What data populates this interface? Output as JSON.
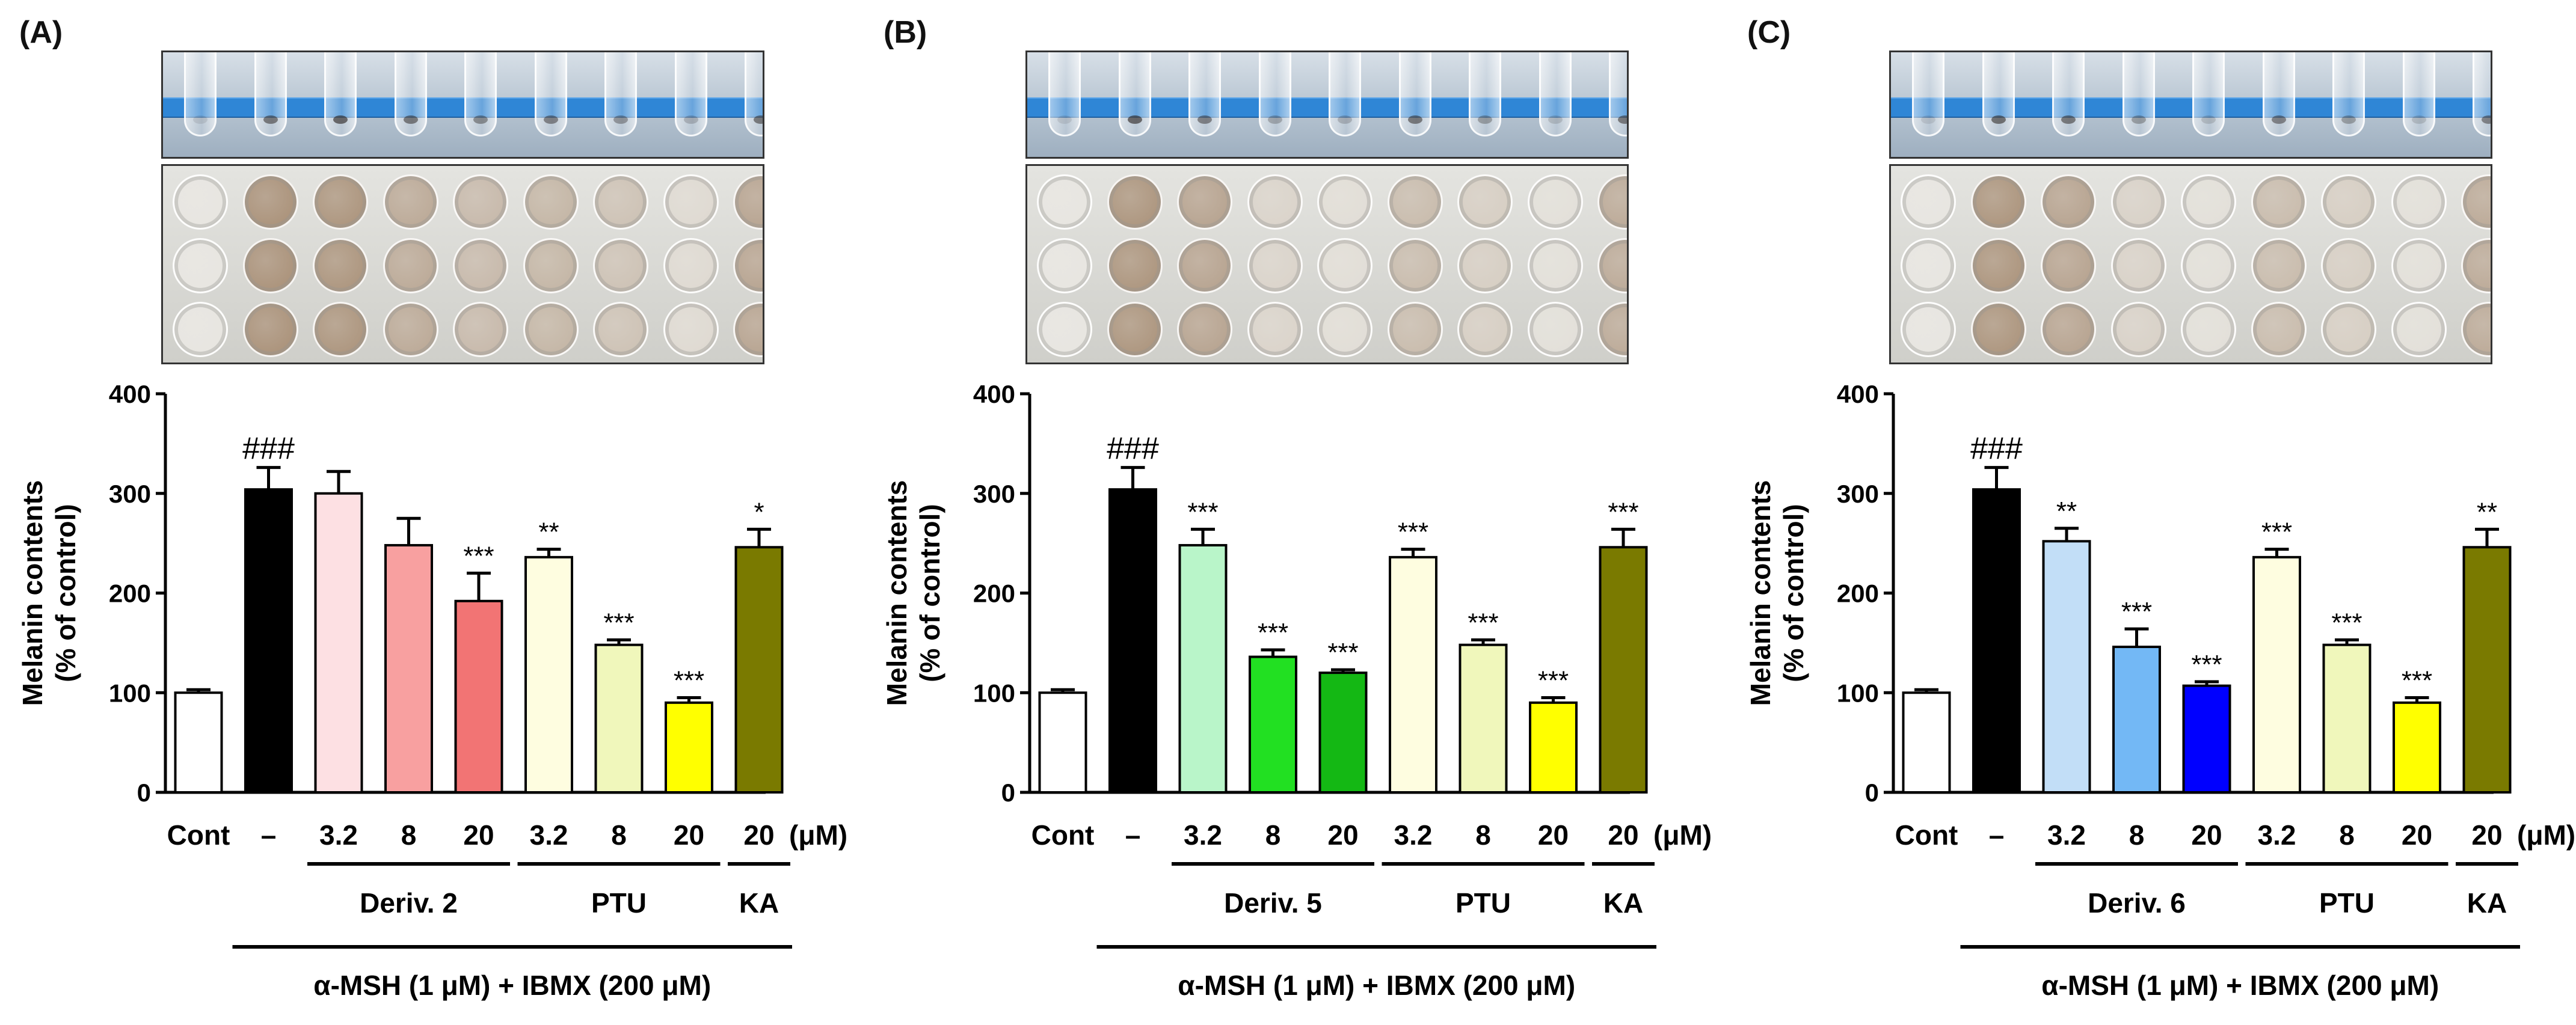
{
  "chart_data": [
    {
      "panel": "(A)",
      "type": "bar",
      "categories": [
        "Cont",
        "–",
        "3.2",
        "8",
        "20",
        "3.2",
        "8",
        "20",
        "20"
      ],
      "unit_label": "(μM)",
      "values": [
        100,
        304,
        300,
        248,
        192,
        236,
        148,
        90,
        246
      ],
      "errors": [
        3,
        22,
        22,
        27,
        28,
        8,
        5,
        5,
        18
      ],
      "colors": [
        "#ffffff",
        "#000000",
        "#fde0e3",
        "#f8a0a0",
        "#f27474",
        "#fefde0",
        "#f0f7bb",
        "#ffff00",
        "#7a7a00"
      ],
      "significance": [
        "",
        "###",
        "",
        "",
        "***",
        "**",
        "***",
        "***",
        "*"
      ],
      "ylabel_line1": "Melanin contents",
      "ylabel_line2": "(% of control)",
      "ylim": [
        0,
        400
      ],
      "yticks": [
        "0",
        "100",
        "200",
        "300",
        "400"
      ],
      "groups": [
        {
          "label": "Deriv. 2",
          "from": 2,
          "to": 4
        },
        {
          "label": "PTU",
          "from": 5,
          "to": 7
        },
        {
          "label": "KA",
          "from": 8,
          "to": 8
        }
      ],
      "treatment_label": "α-MSH (1 μM) + IBMX (200 μM)",
      "treatment_from": 1,
      "treatment_to": 8,
      "tube_pellet_intensity": [
        0.1,
        0.5,
        0.6,
        0.5,
        0.4,
        0.45,
        0.35,
        0.2,
        0.5
      ],
      "well_color_intensity": [
        0.05,
        0.75,
        0.72,
        0.55,
        0.42,
        0.45,
        0.35,
        0.15,
        0.6
      ]
    },
    {
      "panel": "(B)",
      "type": "bar",
      "categories": [
        "Cont",
        "–",
        "3.2",
        "8",
        "20",
        "3.2",
        "8",
        "20",
        "20"
      ],
      "unit_label": "(μM)",
      "values": [
        100,
        304,
        248,
        136,
        120,
        236,
        148,
        90,
        246
      ],
      "errors": [
        3,
        22,
        16,
        7,
        3,
        8,
        5,
        5,
        18
      ],
      "colors": [
        "#ffffff",
        "#000000",
        "#b9f5c9",
        "#22e022",
        "#14b814",
        "#fefde0",
        "#f0f7bb",
        "#ffff00",
        "#7a7a00"
      ],
      "significance": [
        "",
        "###",
        "***",
        "***",
        "***",
        "***",
        "***",
        "***",
        "***"
      ],
      "ylabel_line1": "Melanin contents",
      "ylabel_line2": "(% of control)",
      "ylim": [
        0,
        400
      ],
      "yticks": [
        "0",
        "100",
        "200",
        "300",
        "400"
      ],
      "groups": [
        {
          "label": "Deriv. 5",
          "from": 2,
          "to": 4
        },
        {
          "label": "PTU",
          "from": 5,
          "to": 7
        },
        {
          "label": "KA",
          "from": 8,
          "to": 8
        }
      ],
      "treatment_label": "α-MSH (1 μM) + IBMX (200 μM)",
      "treatment_from": 1,
      "treatment_to": 8,
      "tube_pellet_intensity": [
        0.1,
        0.6,
        0.45,
        0.25,
        0.2,
        0.5,
        0.3,
        0.15,
        0.5
      ],
      "well_color_intensity": [
        0.05,
        0.72,
        0.6,
        0.2,
        0.12,
        0.4,
        0.25,
        0.1,
        0.55
      ]
    },
    {
      "panel": "(C)",
      "type": "bar",
      "categories": [
        "Cont",
        "–",
        "3.2",
        "8",
        "20",
        "3.2",
        "8",
        "20",
        "20"
      ],
      "unit_label": "(μM)",
      "values": [
        100,
        304,
        252,
        146,
        107,
        236,
        148,
        90,
        246
      ],
      "errors": [
        3,
        22,
        13,
        18,
        4,
        8,
        5,
        5,
        18
      ],
      "colors": [
        "#ffffff",
        "#000000",
        "#c2def7",
        "#73b8f5",
        "#0000ff",
        "#fefde0",
        "#f0f7bb",
        "#ffff00",
        "#7a7a00"
      ],
      "significance": [
        "",
        "###",
        "**",
        "***",
        "***",
        "***",
        "***",
        "***",
        "**"
      ],
      "ylabel_line1": "Melanin contents",
      "ylabel_line2": "(% of control)",
      "ylim": [
        0,
        400
      ],
      "yticks": [
        "0",
        "100",
        "200",
        "300",
        "400"
      ],
      "groups": [
        {
          "label": "Deriv. 6",
          "from": 2,
          "to": 4
        },
        {
          "label": "PTU",
          "from": 5,
          "to": 7
        },
        {
          "label": "KA",
          "from": 8,
          "to": 8
        }
      ],
      "treatment_label": "α-MSH (1 μM) + IBMX (200 μM)",
      "treatment_from": 1,
      "treatment_to": 8,
      "tube_pellet_intensity": [
        0.1,
        0.55,
        0.5,
        0.3,
        0.15,
        0.45,
        0.3,
        0.15,
        0.45
      ],
      "well_color_intensity": [
        0.05,
        0.72,
        0.6,
        0.22,
        0.1,
        0.4,
        0.25,
        0.1,
        0.55
      ]
    }
  ]
}
